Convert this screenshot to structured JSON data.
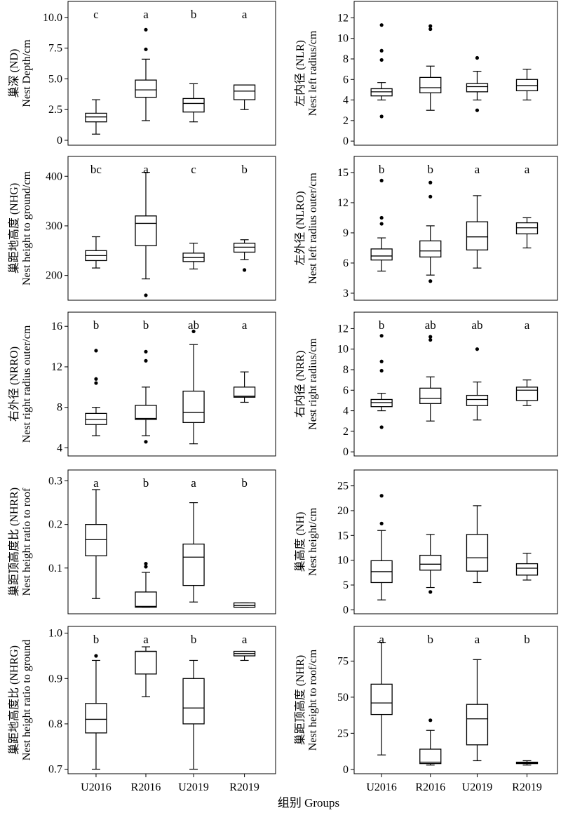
{
  "xlabel_common": "组别 Groups",
  "chart_data": [
    {
      "type": "box",
      "ylabel_cn": "巢深 (ND)",
      "ylabel_en": "Nest Depth/cm",
      "ylim": [
        -0.4,
        11.3
      ],
      "yticks": [
        0,
        2.5,
        5.0,
        7.5,
        10.0
      ],
      "ytick_labels": [
        "0",
        "2.5",
        "5.0",
        "7.5",
        "10.0"
      ],
      "categories": [
        "U2016",
        "R2016",
        "U2019",
        "R2019"
      ],
      "groups": [
        {
          "name": "U2016",
          "letter": "c",
          "whisker_low": 0.5,
          "q1": 1.5,
          "median": 1.9,
          "q3": 2.2,
          "whisker_high": 3.3,
          "outliers": []
        },
        {
          "name": "R2016",
          "letter": "a",
          "whisker_low": 1.6,
          "q1": 3.5,
          "median": 4.1,
          "q3": 4.9,
          "whisker_high": 6.6,
          "outliers": [
            7.4,
            9.0
          ]
        },
        {
          "name": "U2019",
          "letter": "b",
          "whisker_low": 1.5,
          "q1": 2.3,
          "median": 3.0,
          "q3": 3.4,
          "whisker_high": 4.6,
          "outliers": []
        },
        {
          "name": "R2019",
          "letter": "a",
          "whisker_low": 2.5,
          "q1": 3.3,
          "median": 4.0,
          "q3": 4.5,
          "whisker_high": 4.5,
          "outliers": []
        }
      ]
    },
    {
      "type": "box",
      "ylabel_cn": "左内径 (NLR)",
      "ylabel_en": "Nest left radius/cm",
      "ylim": [
        -0.4,
        13.6
      ],
      "yticks": [
        0,
        2,
        4,
        6,
        8,
        10,
        12
      ],
      "ytick_labels": [
        "0",
        "2",
        "4",
        "6",
        "8",
        "10",
        "12"
      ],
      "categories": [
        "U2016",
        "R2016",
        "U2019",
        "R2019"
      ],
      "groups": [
        {
          "name": "U2016",
          "letter": "",
          "whisker_low": 4.0,
          "q1": 4.4,
          "median": 4.8,
          "q3": 5.1,
          "whisker_high": 5.7,
          "outliers": [
            2.4,
            7.9,
            8.8,
            11.3
          ]
        },
        {
          "name": "R2016",
          "letter": "",
          "whisker_low": 3.0,
          "q1": 4.7,
          "median": 5.2,
          "q3": 6.2,
          "whisker_high": 7.3,
          "outliers": [
            10.9,
            11.2
          ]
        },
        {
          "name": "U2019",
          "letter": "",
          "whisker_low": 4.0,
          "q1": 4.8,
          "median": 5.3,
          "q3": 5.6,
          "whisker_high": 6.8,
          "outliers": [
            3.0,
            8.1
          ]
        },
        {
          "name": "R2019",
          "letter": "",
          "whisker_low": 4.0,
          "q1": 4.9,
          "median": 5.4,
          "q3": 6.0,
          "whisker_high": 7.0,
          "outliers": []
        }
      ]
    },
    {
      "type": "box",
      "ylabel_cn": "巢距地高度 (NHG)",
      "ylabel_en": "Nest height to ground/cm",
      "ylim": [
        150,
        440
      ],
      "yticks": [
        200,
        300,
        400
      ],
      "ytick_labels": [
        "200",
        "300",
        "400"
      ],
      "categories": [
        "U2016",
        "R2016",
        "U2019",
        "R2019"
      ],
      "groups": [
        {
          "name": "U2016",
          "letter": "bc",
          "whisker_low": 215,
          "q1": 230,
          "median": 240,
          "q3": 250,
          "whisker_high": 278,
          "outliers": []
        },
        {
          "name": "R2016",
          "letter": "a",
          "whisker_low": 193,
          "q1": 260,
          "median": 305,
          "q3": 320,
          "whisker_high": 408,
          "outliers": [
            160
          ]
        },
        {
          "name": "U2019",
          "letter": "c",
          "whisker_low": 213,
          "q1": 228,
          "median": 236,
          "q3": 245,
          "whisker_high": 265,
          "outliers": []
        },
        {
          "name": "R2019",
          "letter": "b",
          "whisker_low": 232,
          "q1": 247,
          "median": 257,
          "q3": 265,
          "whisker_high": 272,
          "outliers": [
            211
          ]
        }
      ]
    },
    {
      "type": "box",
      "ylabel_cn": "左外径 (NLRO)",
      "ylabel_en": "Nest left radius outer/cm",
      "ylim": [
        2.3,
        16.6
      ],
      "yticks": [
        3,
        6,
        9,
        12,
        15
      ],
      "ytick_labels": [
        "3",
        "6",
        "9",
        "12",
        "15"
      ],
      "categories": [
        "U2016",
        "R2016",
        "U2019",
        "R2019"
      ],
      "groups": [
        {
          "name": "U2016",
          "letter": "b",
          "whisker_low": 5.2,
          "q1": 6.3,
          "median": 6.7,
          "q3": 7.4,
          "whisker_high": 8.5,
          "outliers": [
            9.9,
            10.5,
            14.2
          ]
        },
        {
          "name": "R2016",
          "letter": "b",
          "whisker_low": 4.8,
          "q1": 6.6,
          "median": 7.2,
          "q3": 8.2,
          "whisker_high": 9.7,
          "outliers": [
            4.2,
            12.6,
            14.0
          ]
        },
        {
          "name": "U2019",
          "letter": "a",
          "whisker_low": 5.5,
          "q1": 7.3,
          "median": 8.6,
          "q3": 10.1,
          "whisker_high": 12.7,
          "outliers": []
        },
        {
          "name": "R2019",
          "letter": "a",
          "whisker_low": 7.5,
          "q1": 8.9,
          "median": 9.5,
          "q3": 10.0,
          "whisker_high": 10.5,
          "outliers": []
        }
      ]
    },
    {
      "type": "box",
      "ylabel_cn": "右外径 (NRRO)",
      "ylabel_en": "Nest right radius outer/cm",
      "ylim": [
        3.2,
        17.4
      ],
      "yticks": [
        4,
        8,
        12,
        16
      ],
      "ytick_labels": [
        "4",
        "8",
        "12",
        "16"
      ],
      "categories": [
        "U2016",
        "R2016",
        "U2019",
        "R2019"
      ],
      "groups": [
        {
          "name": "U2016",
          "letter": "b",
          "whisker_low": 5.2,
          "q1": 6.3,
          "median": 6.8,
          "q3": 7.4,
          "whisker_high": 8.0,
          "outliers": [
            10.4,
            10.8,
            13.6
          ]
        },
        {
          "name": "R2016",
          "letter": "b",
          "whisker_low": 5.2,
          "q1": 6.8,
          "median": 6.9,
          "q3": 8.2,
          "whisker_high": 10.0,
          "outliers": [
            4.6,
            12.6,
            13.5
          ]
        },
        {
          "name": "U2019",
          "letter": "ab",
          "whisker_low": 4.4,
          "q1": 6.5,
          "median": 7.5,
          "q3": 9.6,
          "whisker_high": 14.2,
          "outliers": [
            15.5
          ]
        },
        {
          "name": "R2019",
          "letter": "a",
          "whisker_low": 8.5,
          "q1": 9.0,
          "median": 9.1,
          "q3": 10.0,
          "whisker_high": 11.5,
          "outliers": []
        }
      ]
    },
    {
      "type": "box",
      "ylabel_cn": "右内径 (NRR)",
      "ylabel_en": "Nest right radius/cm",
      "ylim": [
        -0.4,
        13.6
      ],
      "yticks": [
        0,
        2,
        4,
        6,
        8,
        10,
        12
      ],
      "ytick_labels": [
        "0",
        "2",
        "4",
        "6",
        "8",
        "10",
        "12"
      ],
      "categories": [
        "U2016",
        "R2016",
        "U2019",
        "R2019"
      ],
      "groups": [
        {
          "name": "U2016",
          "letter": "b",
          "whisker_low": 4.0,
          "q1": 4.4,
          "median": 4.8,
          "q3": 5.1,
          "whisker_high": 5.7,
          "outliers": [
            2.4,
            7.9,
            8.8,
            11.3
          ]
        },
        {
          "name": "R2016",
          "letter": "ab",
          "whisker_low": 3.0,
          "q1": 4.7,
          "median": 5.2,
          "q3": 6.2,
          "whisker_high": 7.3,
          "outliers": [
            10.9,
            11.2
          ]
        },
        {
          "name": "U2019",
          "letter": "ab",
          "whisker_low": 3.1,
          "q1": 4.5,
          "median": 5.1,
          "q3": 5.5,
          "whisker_high": 6.8,
          "outliers": [
            10.0
          ]
        },
        {
          "name": "R2019",
          "letter": "a",
          "whisker_low": 4.5,
          "q1": 5.0,
          "median": 6.0,
          "q3": 6.3,
          "whisker_high": 7.0,
          "outliers": []
        }
      ]
    },
    {
      "type": "box",
      "ylabel_cn": "巢距顶高度比 (NHRR)",
      "ylabel_en": "Nest height ratio to roof",
      "ylim": [
        -0.005,
        0.325
      ],
      "yticks": [
        0.1,
        0.2,
        0.3
      ],
      "ytick_labels": [
        "0.1",
        "0.2",
        "0.3"
      ],
      "categories": [
        "U2016",
        "R2016",
        "U2019",
        "R2019"
      ],
      "groups": [
        {
          "name": "U2016",
          "letter": "a",
          "whisker_low": 0.03,
          "q1": 0.128,
          "median": 0.165,
          "q3": 0.2,
          "whisker_high": 0.28,
          "outliers": []
        },
        {
          "name": "R2016",
          "letter": "b",
          "whisker_low": 0.01,
          "q1": 0.01,
          "median": 0.012,
          "q3": 0.045,
          "whisker_high": 0.09,
          "outliers": [
            0.103,
            0.11
          ]
        },
        {
          "name": "U2019",
          "letter": "a",
          "whisker_low": 0.022,
          "q1": 0.06,
          "median": 0.125,
          "q3": 0.155,
          "whisker_high": 0.25,
          "outliers": []
        },
        {
          "name": "R2019",
          "letter": "b",
          "whisker_low": 0.01,
          "q1": 0.01,
          "median": 0.014,
          "q3": 0.02,
          "whisker_high": 0.02,
          "outliers": []
        }
      ]
    },
    {
      "type": "box",
      "ylabel_cn": "巢高度 (NH)",
      "ylabel_en": "Nest height/cm",
      "ylim": [
        -0.8,
        28.2
      ],
      "yticks": [
        0,
        5,
        10,
        15,
        20,
        25
      ],
      "ytick_labels": [
        "0",
        "5",
        "10",
        "15",
        "20",
        "25"
      ],
      "categories": [
        "U2016",
        "R2016",
        "U2019",
        "R2019"
      ],
      "groups": [
        {
          "name": "U2016",
          "letter": "",
          "whisker_low": 2.0,
          "q1": 5.5,
          "median": 7.7,
          "q3": 9.9,
          "whisker_high": 16.0,
          "outliers": [
            17.4,
            23.0
          ]
        },
        {
          "name": "R2016",
          "letter": "",
          "whisker_low": 4.5,
          "q1": 8.0,
          "median": 9.2,
          "q3": 11.0,
          "whisker_high": 15.2,
          "outliers": [
            3.6
          ]
        },
        {
          "name": "U2019",
          "letter": "",
          "whisker_low": 5.5,
          "q1": 7.8,
          "median": 10.5,
          "q3": 15.2,
          "whisker_high": 21.0,
          "outliers": []
        },
        {
          "name": "R2019",
          "letter": "",
          "whisker_low": 6.0,
          "q1": 7.0,
          "median": 8.4,
          "q3": 9.3,
          "whisker_high": 11.4,
          "outliers": []
        }
      ]
    },
    {
      "type": "box",
      "ylabel_cn": "巢距地高度比 (NHRG)",
      "ylabel_en": "Nest height ratio to ground",
      "ylim": [
        0.69,
        1.015
      ],
      "yticks": [
        0.7,
        0.8,
        0.9,
        1.0
      ],
      "ytick_labels": [
        "0.7",
        "0.8",
        "0.9",
        "1.0"
      ],
      "categories": [
        "U2016",
        "R2016",
        "U2019",
        "R2019"
      ],
      "groups": [
        {
          "name": "U2016",
          "letter": "b",
          "whisker_low": 0.7,
          "q1": 0.78,
          "median": 0.81,
          "q3": 0.845,
          "whisker_high": 0.94,
          "outliers": [
            0.95
          ]
        },
        {
          "name": "R2016",
          "letter": "a",
          "whisker_low": 0.86,
          "q1": 0.91,
          "median": 0.96,
          "q3": 0.96,
          "whisker_high": 0.97,
          "outliers": []
        },
        {
          "name": "U2019",
          "letter": "b",
          "whisker_low": 0.7,
          "q1": 0.8,
          "median": 0.835,
          "q3": 0.9,
          "whisker_high": 0.94,
          "outliers": []
        },
        {
          "name": "R2019",
          "letter": "a",
          "whisker_low": 0.94,
          "q1": 0.95,
          "median": 0.955,
          "q3": 0.96,
          "whisker_high": 0.96,
          "outliers": []
        }
      ]
    },
    {
      "type": "box",
      "ylabel_cn": "巢距顶高度 (NHR)",
      "ylabel_en": "Nest height to roof/cm",
      "ylim": [
        -3,
        99
      ],
      "yticks": [
        0,
        25,
        50,
        75
      ],
      "ytick_labels": [
        "0",
        "25",
        "50",
        "75"
      ],
      "categories": [
        "U2016",
        "R2016",
        "U2019",
        "R2019"
      ],
      "groups": [
        {
          "name": "U2016",
          "letter": "a",
          "whisker_low": 10,
          "q1": 38,
          "median": 46,
          "q3": 59,
          "whisker_high": 88,
          "outliers": []
        },
        {
          "name": "R2016",
          "letter": "b",
          "whisker_low": 3,
          "q1": 4,
          "median": 5,
          "q3": 14,
          "whisker_high": 27,
          "outliers": [
            34
          ]
        },
        {
          "name": "U2019",
          "letter": "a",
          "whisker_low": 6,
          "q1": 17,
          "median": 35,
          "q3": 45,
          "whisker_high": 76,
          "outliers": []
        },
        {
          "name": "R2019",
          "letter": "b",
          "whisker_low": 3,
          "q1": 4,
          "median": 4.5,
          "q3": 5,
          "whisker_high": 6,
          "outliers": []
        }
      ]
    }
  ]
}
